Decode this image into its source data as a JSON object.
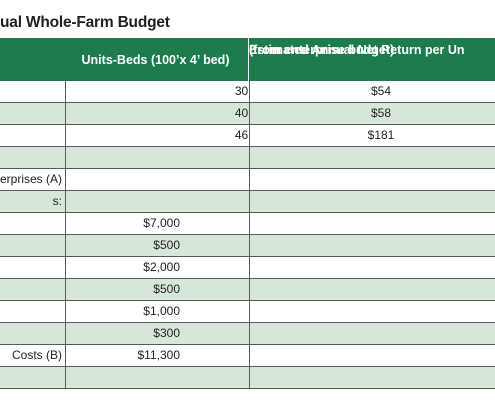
{
  "title": "ual Whole-Farm Budget",
  "header": {
    "units_beds": "Units-Beds (100’x 4’ bed)",
    "net_return_line1": "Estimated Annual Net Return per Un",
    "net_return_line2": "(from enterprise budget)"
  },
  "colors": {
    "header_bg": "#1d7b4d",
    "band_green": "#d6e7d9",
    "grid": "#5a5a5a"
  },
  "rows": [
    {
      "label": "",
      "cost": "",
      "units": "30",
      "return": "$54"
    },
    {
      "label": "",
      "cost": "",
      "units": "40",
      "return": "$58"
    },
    {
      "label": "",
      "cost": "",
      "units": "46",
      "return": "$181"
    },
    {
      "label": "",
      "cost": "",
      "units": "",
      "return": ""
    },
    {
      "label": "erprises (A)",
      "cost": "",
      "units": "",
      "return": ""
    },
    {
      "label": "s:",
      "cost": "",
      "units": "",
      "return": ""
    },
    {
      "label": "",
      "cost": "$7,000",
      "units": "",
      "return": ""
    },
    {
      "label": "",
      "cost": "$500",
      "units": "",
      "return": ""
    },
    {
      "label": "",
      "cost": "$2,000",
      "units": "",
      "return": ""
    },
    {
      "label": "",
      "cost": "$500",
      "units": "",
      "return": ""
    },
    {
      "label": "",
      "cost": "$1,000",
      "units": "",
      "return": ""
    },
    {
      "label": "",
      "cost": "$300",
      "units": "",
      "return": ""
    },
    {
      "label": "Costs (B)",
      "cost": "$11,300",
      "units": "",
      "return": ""
    },
    {
      "label": "",
      "cost": "",
      "units": "",
      "return": ""
    }
  ]
}
